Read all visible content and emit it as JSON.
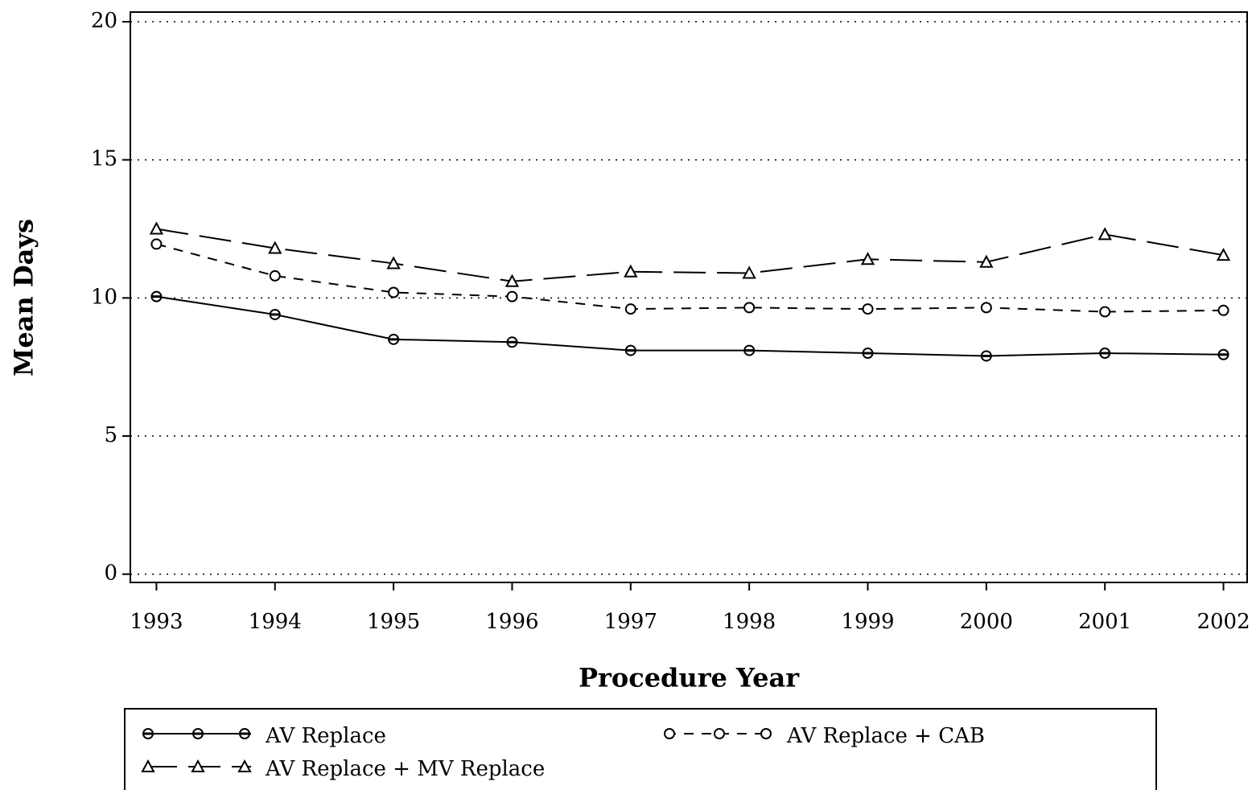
{
  "chart_data": {
    "type": "line",
    "x_label": "Procedure Year",
    "y_label": "Mean Days",
    "x": [
      1993,
      1994,
      1995,
      1996,
      1997,
      1998,
      1999,
      2000,
      2001,
      2002
    ],
    "xlim": [
      1992.78,
      2002.2
    ],
    "xticks": [
      1993,
      1994,
      1995,
      1996,
      1997,
      1998,
      1999,
      2000,
      2001,
      2002
    ],
    "ylim": [
      -0.3,
      20.35
    ],
    "yticks": [
      0,
      5,
      10,
      15,
      20
    ],
    "grid": true,
    "series": [
      {
        "name": "AV Replace",
        "color": "#000000",
        "dash": "solid",
        "marker": "filled-circle",
        "values": [
          10.05,
          9.4,
          8.5,
          8.4,
          8.1,
          8.1,
          8.0,
          7.9,
          8.0,
          7.95
        ]
      },
      {
        "name": "AV Replace + CAB",
        "color": "#000000",
        "dash": "dashed",
        "marker": "circle",
        "values": [
          11.95,
          10.8,
          10.2,
          10.05,
          9.6,
          9.65,
          9.6,
          9.65,
          9.5,
          9.55
        ]
      },
      {
        "name": "AV Replace + MV Replace",
        "color": "#000000",
        "dash": "long-dashed",
        "marker": "triangle",
        "values": [
          12.5,
          11.8,
          11.25,
          10.6,
          10.95,
          10.9,
          11.4,
          11.3,
          12.3,
          11.55
        ]
      }
    ]
  }
}
